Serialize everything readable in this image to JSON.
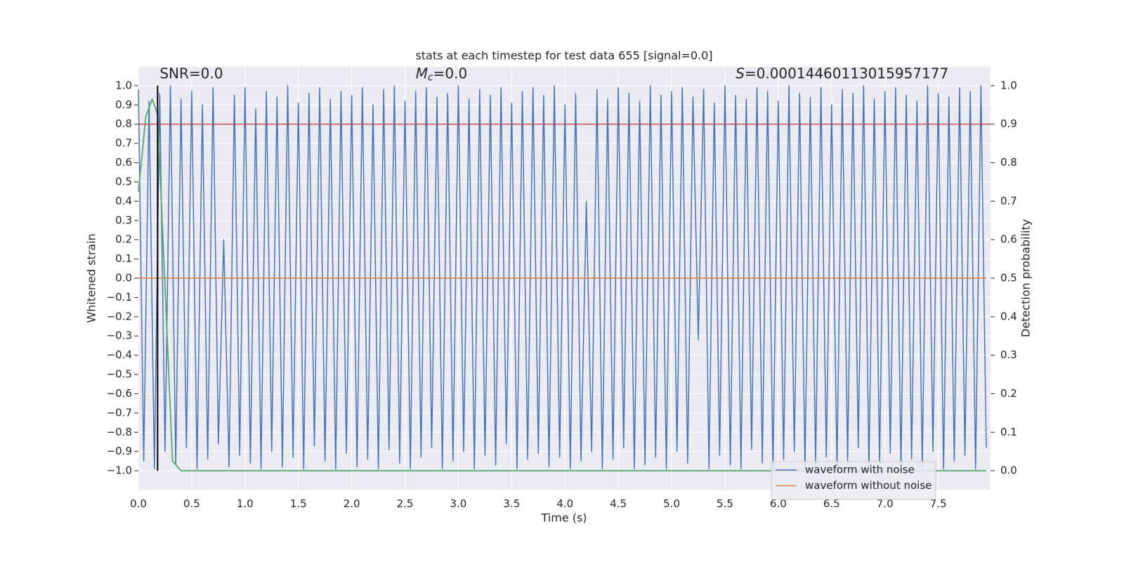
{
  "chart_data": {
    "type": "line",
    "title": "stats at each timestep for test data 655 [signal=0.0]",
    "x_label": "Time (s)",
    "y_label": "Whitened strain",
    "y2_label": "Detection probability",
    "annotations": [
      {
        "text": "SNR=0.0",
        "x": 0.2,
        "y": 1.06
      },
      {
        "base": "M",
        "sub": "c",
        "text": "=0.0",
        "x": 2.6,
        "y": 1.06
      },
      {
        "base": "S",
        "text": "=0.00014460113015957177",
        "x": 5.6,
        "y": 1.06
      }
    ],
    "xlim": [
      0,
      7.99
    ],
    "ylim": [
      -1.1,
      1.1
    ],
    "y2lim": [
      -0.05,
      1.05
    ],
    "xticks": [
      {
        "value": 0,
        "label": "0.0"
      },
      {
        "value": 0.5,
        "label": "0.5"
      },
      {
        "value": 1,
        "label": "1.0"
      },
      {
        "value": 1.5,
        "label": "1.5"
      },
      {
        "value": 2,
        "label": "2.0"
      },
      {
        "value": 2.5,
        "label": "2.5"
      },
      {
        "value": 3,
        "label": "3.0"
      },
      {
        "value": 3.5,
        "label": "3.5"
      },
      {
        "value": 4,
        "label": "4.0"
      },
      {
        "value": 4.5,
        "label": "4.5"
      },
      {
        "value": 5,
        "label": "5.0"
      },
      {
        "value": 5.5,
        "label": "5.5"
      },
      {
        "value": 6,
        "label": "6.0"
      },
      {
        "value": 6.5,
        "label": "6.5"
      },
      {
        "value": 7,
        "label": "7.0"
      },
      {
        "value": 7.5,
        "label": "7.5"
      }
    ],
    "yticks": [
      {
        "value": -1,
        "label": "−1.0"
      },
      {
        "value": -0.9,
        "label": "−0.9"
      },
      {
        "value": -0.8,
        "label": "−0.8"
      },
      {
        "value": -0.7,
        "label": "−0.7"
      },
      {
        "value": -0.6,
        "label": "−0.6"
      },
      {
        "value": -0.5,
        "label": "−0.5"
      },
      {
        "value": -0.4,
        "label": "−0.4"
      },
      {
        "value": -0.3,
        "label": "−0.3"
      },
      {
        "value": -0.2,
        "label": "−0.2"
      },
      {
        "value": -0.1,
        "label": "−0.1"
      },
      {
        "value": 0,
        "label": "0.0"
      },
      {
        "value": 0.1,
        "label": "0.1"
      },
      {
        "value": 0.2,
        "label": "0.2"
      },
      {
        "value": 0.3,
        "label": "0.3"
      },
      {
        "value": 0.4,
        "label": "0.4"
      },
      {
        "value": 0.5,
        "label": "0.5"
      },
      {
        "value": 0.6,
        "label": "0.6"
      },
      {
        "value": 0.7,
        "label": "0.7"
      },
      {
        "value": 0.8,
        "label": "0.8"
      },
      {
        "value": 0.9,
        "label": "0.9"
      },
      {
        "value": 1,
        "label": "1.0"
      }
    ],
    "y2ticks": [
      {
        "value": 0,
        "label": "0.0"
      },
      {
        "value": 0.1,
        "label": "0.1"
      },
      {
        "value": 0.2,
        "label": "0.2"
      },
      {
        "value": 0.3,
        "label": "0.3"
      },
      {
        "value": 0.4,
        "label": "0.4"
      },
      {
        "value": 0.5,
        "label": "0.5"
      },
      {
        "value": 0.6,
        "label": "0.6"
      },
      {
        "value": 0.7,
        "label": "0.7"
      },
      {
        "value": 0.8,
        "label": "0.8"
      },
      {
        "value": 0.9,
        "label": "0.9"
      },
      {
        "value": 1,
        "label": "1.0"
      }
    ],
    "grid": true,
    "legend_position": "lower right",
    "series": [
      {
        "name": "waveform with noise",
        "color": "#4c72b0",
        "x": [
          0,
          0.05,
          0.1,
          0.15,
          0.2,
          0.25,
          0.3,
          0.35,
          0.4,
          0.45,
          0.5,
          0.55,
          0.6,
          0.65,
          0.7,
          0.75,
          0.8,
          0.85,
          0.9,
          0.95,
          1,
          1.05,
          1.1,
          1.15,
          1.2,
          1.25,
          1.3,
          1.35,
          1.4,
          1.45,
          1.5,
          1.55,
          1.6,
          1.65,
          1.7,
          1.75,
          1.8,
          1.85,
          1.9,
          1.95,
          2,
          2.05,
          2.1,
          2.15,
          2.2,
          2.25,
          2.3,
          2.35,
          2.4,
          2.45,
          2.5,
          2.55,
          2.6,
          2.65,
          2.7,
          2.75,
          2.8,
          2.85,
          2.9,
          2.95,
          3,
          3.05,
          3.1,
          3.15,
          3.2,
          3.25,
          3.3,
          3.35,
          3.4,
          3.45,
          3.5,
          3.55,
          3.6,
          3.65,
          3.7,
          3.75,
          3.8,
          3.85,
          3.9,
          3.95,
          4,
          4.05,
          4.1,
          4.15,
          4.2,
          4.25,
          4.3,
          4.35,
          4.4,
          4.45,
          4.5,
          4.55,
          4.6,
          4.65,
          4.7,
          4.75,
          4.8,
          4.85,
          4.9,
          4.95,
          5,
          5.05,
          5.1,
          5.15,
          5.2,
          5.25,
          5.3,
          5.35,
          5.4,
          5.45,
          5.5,
          5.55,
          5.6,
          5.65,
          5.7,
          5.75,
          5.8,
          5.85,
          5.9,
          5.95,
          6,
          6.05,
          6.1,
          6.15,
          6.2,
          6.25,
          6.3,
          6.35,
          6.4,
          6.45,
          6.5,
          6.55,
          6.6,
          6.65,
          6.7,
          6.75,
          6.8,
          6.85,
          6.9,
          6.95,
          7,
          7.05,
          7.1,
          7.15,
          7.2,
          7.25,
          7.3,
          7.35,
          7.4,
          7.45,
          7.5,
          7.55,
          7.6,
          7.65,
          7.7,
          7.75,
          7.8,
          7.85,
          7.9,
          7.95
        ],
        "values": [
          0.98,
          -0.95,
          0.92,
          -0.99,
          0.96,
          -0.9,
          1.0,
          -0.97,
          0.93,
          -0.88,
          0.97,
          -0.99,
          0.9,
          -0.94,
          0.99,
          -0.86,
          0.2,
          -0.98,
          0.95,
          -0.92,
          0.99,
          -0.96,
          0.88,
          -0.99,
          0.97,
          -0.9,
          0.94,
          -0.98,
          1.0,
          -0.93,
          0.91,
          -0.99,
          0.96,
          -0.87,
          0.99,
          -0.95,
          0.93,
          -0.99,
          0.97,
          -0.91,
          0.95,
          -0.98,
          0.99,
          -0.94,
          0.9,
          -0.99,
          0.98,
          -0.89,
          1.0,
          -0.96,
          0.92,
          -0.99,
          0.97,
          -0.93,
          0.99,
          -0.88,
          0.94,
          -0.99,
          0.96,
          -0.95,
          1.0,
          -0.9,
          0.93,
          -0.99,
          0.98,
          -0.92,
          0.95,
          -0.97,
          0.99,
          -0.86,
          0.91,
          -0.99,
          0.97,
          -0.94,
          0.99,
          -0.91,
          0.95,
          -0.98,
          1.0,
          -0.93,
          0.9,
          -0.99,
          0.96,
          -0.95,
          0.4,
          -0.9,
          0.98,
          -0.99,
          0.93,
          -0.94,
          0.99,
          -0.88,
          0.96,
          -0.99,
          0.92,
          -0.97,
          1.0,
          -0.93,
          0.95,
          -0.99,
          0.97,
          -0.9,
          0.99,
          -0.96,
          0.94,
          -0.32,
          0.98,
          -0.99,
          0.91,
          -0.92,
          1.0,
          -0.97,
          0.95,
          -0.99,
          0.93,
          -0.89,
          0.99,
          -0.96,
          0.97,
          -0.99,
          0.92,
          -0.94,
          1.0,
          -0.9,
          0.96,
          -0.99,
          0.94,
          -0.97,
          0.99,
          -0.93,
          0.9,
          -0.99,
          0.98,
          -0.95,
          0.96,
          -0.88,
          1.0,
          -0.99,
          0.93,
          -0.96,
          0.97,
          -0.91,
          0.99,
          -0.99,
          0.95,
          -0.94,
          0.92,
          -0.98,
          1.0,
          -0.9,
          0.96,
          -0.99,
          0.94,
          -0.95,
          0.99,
          -0.92,
          0.97,
          -0.99,
          1.0,
          -0.88
        ]
      },
      {
        "name": "waveform without noise",
        "color": "#dd8452",
        "x": [
          0,
          7.95
        ],
        "values": [
          0,
          0
        ]
      },
      {
        "color": "#55a868",
        "axis": "y2",
        "x": [
          0,
          0.07,
          0.13,
          0.18,
          0.32,
          0.4,
          7.95
        ],
        "values": [
          0.725,
          0.92,
          0.965,
          0.925,
          0.025,
          0,
          0
        ]
      }
    ],
    "hlines": [
      {
        "value": 0.9,
        "axis": "y2",
        "color": "#c44e52"
      }
    ],
    "vlines": [
      {
        "value": 0.18,
        "color": "#000000"
      }
    ]
  }
}
